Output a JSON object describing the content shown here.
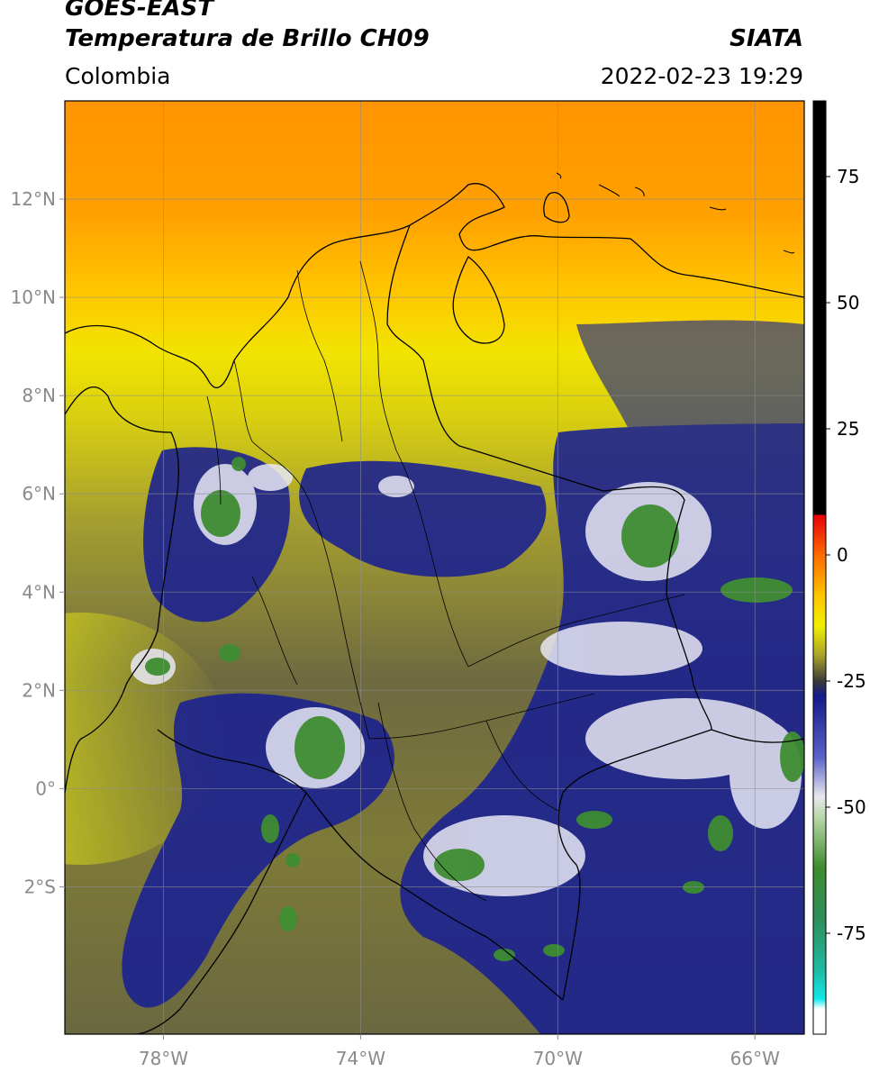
{
  "header": {
    "satellite": "GOES-EAST",
    "product": "Temperatura de Brillo CH09",
    "region": "Colombia",
    "source": "SIATA",
    "datetime": "2022-02-23 19:29"
  },
  "map": {
    "lon_range": [
      -80,
      -65
    ],
    "lat_range": [
      -5,
      14
    ],
    "lon_ticks": [
      {
        "value": -78,
        "label": "78°W"
      },
      {
        "value": -74,
        "label": "74°W"
      },
      {
        "value": -70,
        "label": "70°W"
      },
      {
        "value": -66,
        "label": "66°W"
      }
    ],
    "lat_ticks": [
      {
        "value": 12,
        "label": "12°N"
      },
      {
        "value": 10,
        "label": "10°N"
      },
      {
        "value": 8,
        "label": "8°N"
      },
      {
        "value": 6,
        "label": "6°N"
      },
      {
        "value": 4,
        "label": "4°N"
      },
      {
        "value": 2,
        "label": "2°N"
      },
      {
        "value": 0,
        "label": "0°"
      },
      {
        "value": -2,
        "label": "2°S"
      }
    ],
    "gridlines": true
  },
  "colorbar": {
    "range": [
      -95,
      90
    ],
    "ticks": [
      {
        "value": 75,
        "label": "75"
      },
      {
        "value": 50,
        "label": "50"
      },
      {
        "value": 25,
        "label": "25"
      },
      {
        "value": 0,
        "label": "0"
      },
      {
        "value": -25,
        "label": "-25"
      },
      {
        "value": -50,
        "label": "-50"
      },
      {
        "value": -75,
        "label": "-75"
      }
    ],
    "stops": [
      {
        "value": 90,
        "color": "#000000"
      },
      {
        "value": 8,
        "color": "#000000"
      },
      {
        "value": 7.9,
        "color": "#e8000a"
      },
      {
        "value": 0,
        "color": "#ff6a00"
      },
      {
        "value": -8,
        "color": "#ffc400"
      },
      {
        "value": -14,
        "color": "#f0f000"
      },
      {
        "value": -20,
        "color": "#a9a12a"
      },
      {
        "value": -25,
        "color": "#3a3a3a"
      },
      {
        "value": -28,
        "color": "#141b8a"
      },
      {
        "value": -40,
        "color": "#5a62c8"
      },
      {
        "value": -48,
        "color": "#e8e8ee"
      },
      {
        "value": -52,
        "color": "#b8d8a8"
      },
      {
        "value": -62,
        "color": "#3e8c2e"
      },
      {
        "value": -72,
        "color": "#2e8e5a"
      },
      {
        "value": -82,
        "color": "#20b8a0"
      },
      {
        "value": -88,
        "color": "#10e8e8"
      },
      {
        "value": -90,
        "color": "#ffffff"
      },
      {
        "value": -95,
        "color": "#ffffff"
      }
    ]
  }
}
